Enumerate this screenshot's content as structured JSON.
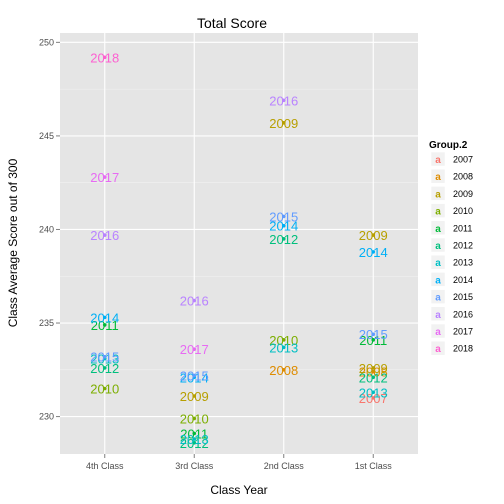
{
  "chart_data": {
    "type": "scatter",
    "title": "Total Score",
    "xlabel": "Class Year",
    "ylabel": "Class Average Score out of 300",
    "categories": [
      "4th Class",
      "3rd Class",
      "2nd Class",
      "1st Class"
    ],
    "ylim": [
      228,
      250.5
    ],
    "yticks": [
      230,
      235,
      240,
      245,
      250
    ],
    "grid": true,
    "legend": {
      "title": "Group.2",
      "position": "right"
    },
    "series": [
      {
        "name": "2007",
        "color": "#F8766D",
        "points": [
          {
            "x": "1st Class",
            "y": 231.0
          }
        ]
      },
      {
        "name": "2008",
        "color": "#DE8C00",
        "points": [
          {
            "x": "2nd Class",
            "y": 232.5
          },
          {
            "x": "1st Class",
            "y": 232.4
          }
        ]
      },
      {
        "name": "2009",
        "color": "#B79F00",
        "points": [
          {
            "x": "3rd Class",
            "y": 231.1
          },
          {
            "x": "2nd Class",
            "y": 245.7
          },
          {
            "x": "1st Class",
            "y": 239.7
          },
          {
            "x": "1st Class",
            "y": 232.6
          }
        ]
      },
      {
        "name": "2010",
        "color": "#7CAE00",
        "points": [
          {
            "x": "4th Class",
            "y": 231.5
          },
          {
            "x": "3rd Class",
            "y": 229.9
          },
          {
            "x": "2nd Class",
            "y": 234.1
          }
        ]
      },
      {
        "name": "2011",
        "color": "#00BA38",
        "points": [
          {
            "x": "4th Class",
            "y": 234.9
          },
          {
            "x": "3rd Class",
            "y": 229.1
          },
          {
            "x": "1st Class",
            "y": 234.1
          }
        ]
      },
      {
        "name": "2012",
        "color": "#00BF7D",
        "points": [
          {
            "x": "4th Class",
            "y": 232.6
          },
          {
            "x": "3rd Class",
            "y": 228.6
          },
          {
            "x": "2nd Class",
            "y": 239.5
          },
          {
            "x": "1st Class",
            "y": 232.1
          }
        ]
      },
      {
        "name": "2013",
        "color": "#00BFC4",
        "points": [
          {
            "x": "4th Class",
            "y": 233.1
          },
          {
            "x": "3rd Class",
            "y": 228.8
          },
          {
            "x": "2nd Class",
            "y": 233.7
          },
          {
            "x": "1st Class",
            "y": 231.3
          }
        ]
      },
      {
        "name": "2014",
        "color": "#00B0F6",
        "points": [
          {
            "x": "4th Class",
            "y": 235.3
          },
          {
            "x": "3rd Class",
            "y": 232.1
          },
          {
            "x": "2nd Class",
            "y": 240.2
          },
          {
            "x": "1st Class",
            "y": 238.8
          }
        ]
      },
      {
        "name": "2015",
        "color": "#619CFF",
        "points": [
          {
            "x": "4th Class",
            "y": 233.2
          },
          {
            "x": "3rd Class",
            "y": 232.2
          },
          {
            "x": "2nd Class",
            "y": 240.7
          },
          {
            "x": "1st Class",
            "y": 234.4
          }
        ]
      },
      {
        "name": "2016",
        "color": "#B983FF",
        "points": [
          {
            "x": "4th Class",
            "y": 239.7
          },
          {
            "x": "3rd Class",
            "y": 236.2
          },
          {
            "x": "2nd Class",
            "y": 246.9
          }
        ]
      },
      {
        "name": "2017",
        "color": "#E76BF3",
        "points": [
          {
            "x": "4th Class",
            "y": 242.8
          },
          {
            "x": "3rd Class",
            "y": 233.6
          }
        ]
      },
      {
        "name": "2018",
        "color": "#FD61D1",
        "points": [
          {
            "x": "4th Class",
            "y": 249.2
          }
        ]
      }
    ]
  }
}
